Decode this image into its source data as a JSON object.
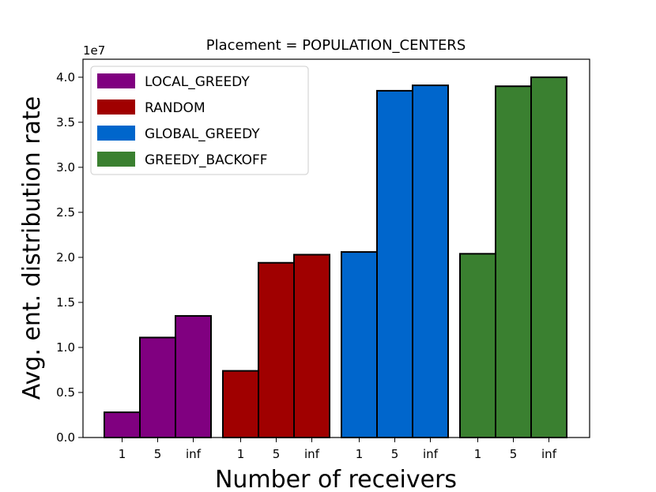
{
  "chart_data": {
    "type": "bar",
    "title": "Placement = POPULATION_CENTERS",
    "xlabel": "Number of receivers",
    "ylabel": "Avg. ent. distribution rate",
    "y_offset_label": "1e7",
    "ylim": [
      0,
      4.2
    ],
    "y_ticks": [
      "0.0",
      "0.5",
      "1.0",
      "1.5",
      "2.0",
      "2.5",
      "3.0",
      "3.5",
      "4.0"
    ],
    "categories": [
      "1",
      "5",
      "inf"
    ],
    "legend_position": "top-left",
    "series": [
      {
        "name": "LOCAL_GREEDY",
        "color": "#800080",
        "values": [
          0.28,
          1.11,
          1.35
        ]
      },
      {
        "name": "RANDOM",
        "color": "#a00000",
        "values": [
          0.74,
          1.94,
          2.03
        ]
      },
      {
        "name": "GLOBAL_GREEDY",
        "color": "#0066cc",
        "values": [
          2.06,
          3.85,
          3.91
        ]
      },
      {
        "name": "GREEDY_BACKOFF",
        "color": "#3a8030",
        "values": [
          2.04,
          3.9,
          4.0
        ]
      }
    ]
  }
}
